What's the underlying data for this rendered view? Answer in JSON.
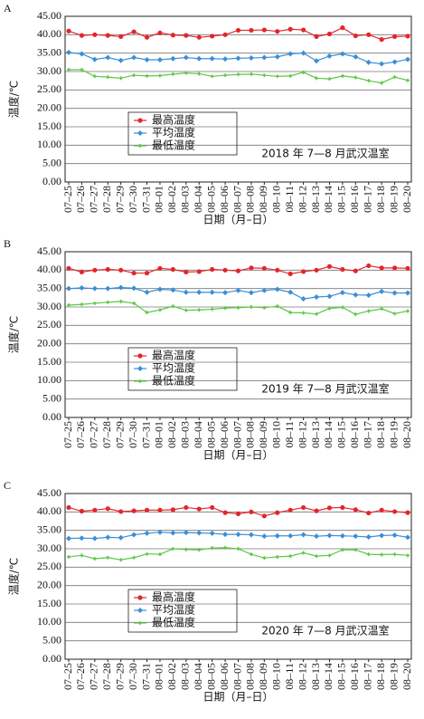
{
  "chart_data": [
    {
      "type": "line",
      "panel": "A",
      "annotation": "2018 年 7—8 月武汉温室",
      "xlabel": "日期（月–日）",
      "ylabel": "温度/℃",
      "categories": [
        "07–25",
        "07–26",
        "07–27",
        "07–28",
        "07–29",
        "07–30",
        "07–31",
        "08–01",
        "08–02",
        "08–03",
        "08–04",
        "08–05",
        "08–06",
        "08–07",
        "08–08",
        "08–09",
        "08–10",
        "08–11",
        "08–12",
        "08–13",
        "08–14",
        "08–15",
        "08–16",
        "08–17",
        "08–18",
        "08–19",
        "08–20"
      ],
      "series": [
        {
          "name": "最高温度",
          "color": "#e3262b",
          "values": [
            41,
            39.8,
            40,
            39.8,
            39.5,
            40.8,
            39.3,
            40.5,
            39.9,
            39.8,
            39.3,
            39.6,
            40.0,
            41.2,
            41.2,
            41.3,
            40.9,
            41.5,
            41.3,
            39.5,
            40.2,
            41.9,
            39.7,
            40.0,
            38.7,
            39.5,
            39.6
          ]
        },
        {
          "name": "平均温度",
          "color": "#3a8fd6",
          "values": [
            35.2,
            34.8,
            33.3,
            33.8,
            33.0,
            33.8,
            33.2,
            33.2,
            33.5,
            33.8,
            33.5,
            33.5,
            33.4,
            33.6,
            33.7,
            33.8,
            34.0,
            34.8,
            35.0,
            32.9,
            34.2,
            34.8,
            34.0,
            32.5,
            32.1,
            32.6,
            33.3
          ]
        },
        {
          "name": "最低温度",
          "color": "#5cc744",
          "values": [
            30.5,
            30.5,
            28.7,
            28.5,
            28.2,
            29.0,
            28.8,
            28.9,
            29.3,
            29.6,
            29.4,
            28.7,
            29.0,
            29.2,
            29.3,
            29.0,
            28.7,
            28.8,
            29.8,
            28.2,
            28.0,
            28.8,
            28.4,
            27.5,
            26.9,
            28.5,
            27.6
          ]
        }
      ],
      "ylim": [
        0,
        45
      ],
      "yticks": [
        {
          "value": 0,
          "label": "0.00"
        },
        {
          "value": 5,
          "label": "5.00"
        },
        {
          "value": 10,
          "label": "10.00"
        },
        {
          "value": 15,
          "label": "15.00"
        },
        {
          "value": 20,
          "label": "20.00"
        },
        {
          "value": 25,
          "label": "25.00"
        },
        {
          "value": 30,
          "label": "30.00"
        },
        {
          "value": 35,
          "label": "35.00"
        },
        {
          "value": 40,
          "label": "40.00"
        },
        {
          "value": 45,
          "label": "45.00"
        }
      ],
      "grid": true
    },
    {
      "type": "line",
      "panel": "B",
      "annotation": "2019 年 7—8 月武汉温室",
      "xlabel": "日期（月–日）",
      "ylabel": "温度/℃",
      "categories": [
        "07–25",
        "07–26",
        "07–27",
        "07–28",
        "07–29",
        "07–30",
        "07–31",
        "08–01",
        "08–02",
        "08–03",
        "08–04",
        "08–05",
        "08–06",
        "08–07",
        "08–08",
        "08–09",
        "08–10",
        "08–11",
        "08–12",
        "08–13",
        "08–14",
        "08–15",
        "08–16",
        "08–17",
        "08–18",
        "08–19",
        "08–20"
      ],
      "series": [
        {
          "name": "最高温度",
          "color": "#e3262b",
          "values": [
            40.5,
            39.5,
            40,
            40.2,
            40,
            39.2,
            39.2,
            40.5,
            40.2,
            39.5,
            39.6,
            40.2,
            40,
            39.8,
            40.6,
            40.5,
            40,
            39,
            39.6,
            40,
            41,
            40.2,
            39.8,
            41.2,
            40.6,
            40.6,
            40.5
          ]
        },
        {
          "name": "平均温度",
          "color": "#3a8fd6",
          "values": [
            35,
            35.2,
            35,
            35,
            35.3,
            35.1,
            34,
            34.8,
            34.6,
            34,
            34,
            34,
            33.9,
            34.5,
            33.9,
            34.5,
            34.8,
            34,
            32.2,
            32.7,
            32.9,
            33.9,
            33.3,
            33.2,
            34.2,
            33.8,
            33.8
          ]
        },
        {
          "name": "最低温度",
          "color": "#5cc744",
          "values": [
            30.5,
            30.7,
            31,
            31.3,
            31.5,
            31,
            28.5,
            29.2,
            30.2,
            29.1,
            29.2,
            29.4,
            29.7,
            29.8,
            30,
            29.8,
            30.2,
            28.5,
            28.4,
            28.1,
            29.6,
            29.9,
            28,
            28.9,
            29.5,
            28.2,
            28.9
          ]
        }
      ],
      "ylim": [
        0,
        45
      ],
      "yticks": [
        {
          "value": 0,
          "label": "0.00"
        },
        {
          "value": 5,
          "label": "5.00"
        },
        {
          "value": 10,
          "label": "10.00"
        },
        {
          "value": 15,
          "label": "15.00"
        },
        {
          "value": 20,
          "label": "20.00"
        },
        {
          "value": 25,
          "label": "25.00"
        },
        {
          "value": 30,
          "label": "30.00"
        },
        {
          "value": 35,
          "label": "35.00"
        },
        {
          "value": 40,
          "label": "40.00"
        },
        {
          "value": 45,
          "label": "45.00"
        }
      ],
      "grid": true
    },
    {
      "type": "line",
      "panel": "C",
      "annotation": "2020 年 7—8 月武汉温室",
      "xlabel": "日期（月–日）",
      "ylabel": "温度/℃",
      "categories": [
        "07–25",
        "07–26",
        "07–27",
        "07–28",
        "07–29",
        "07–30",
        "07–31",
        "08–01",
        "08–02",
        "08–03",
        "08–04",
        "08–05",
        "08–06",
        "08–07",
        "08–08",
        "08–09",
        "08–10",
        "08–11",
        "08–12",
        "08–13",
        "08–14",
        "08–15",
        "08–16",
        "08–17",
        "08–18",
        "08–19",
        "08–20"
      ],
      "series": [
        {
          "name": "最高温度",
          "color": "#e3262b",
          "values": [
            41.2,
            40.2,
            40.5,
            40.9,
            40.1,
            40.3,
            40.5,
            40.5,
            40.6,
            41.2,
            40.8,
            41.2,
            39.8,
            39.5,
            40,
            38.9,
            39.8,
            40.5,
            41.2,
            40.3,
            41.1,
            41.2,
            40.6,
            39.7,
            40.5,
            40.1,
            39.8
          ]
        },
        {
          "name": "平均温度",
          "color": "#3a8fd6",
          "values": [
            32.8,
            32.9,
            32.8,
            33.1,
            33,
            33.8,
            34.2,
            34.5,
            34.3,
            34.4,
            34.3,
            34.2,
            33.9,
            33.9,
            33.8,
            33.4,
            33.5,
            33.5,
            33.8,
            33.4,
            33.6,
            33.5,
            33.4,
            33.2,
            33.6,
            33.7,
            33.1
          ]
        },
        {
          "name": "最低温度",
          "color": "#5cc744",
          "values": [
            27.8,
            28.2,
            27.3,
            27.6,
            27,
            27.6,
            28.6,
            28.5,
            30,
            29.8,
            29.7,
            30.2,
            30.3,
            30,
            28.5,
            27.5,
            27.8,
            28,
            28.9,
            28,
            28.2,
            29.7,
            29.7,
            28.5,
            28.4,
            28.5,
            28.2
          ]
        }
      ],
      "ylim": [
        0,
        45
      ],
      "yticks": [
        {
          "value": 0,
          "label": "0.00"
        },
        {
          "value": 5,
          "label": "5.00"
        },
        {
          "value": 10,
          "label": "10.00"
        },
        {
          "value": 15,
          "label": "15.00"
        },
        {
          "value": 20,
          "label": "20.00"
        },
        {
          "value": 25,
          "label": "25.00"
        },
        {
          "value": 30,
          "label": "30.00"
        },
        {
          "value": 35,
          "label": "35.00"
        },
        {
          "value": 40,
          "label": "40.00"
        },
        {
          "value": 45,
          "label": "45.00"
        }
      ],
      "grid": true
    }
  ]
}
